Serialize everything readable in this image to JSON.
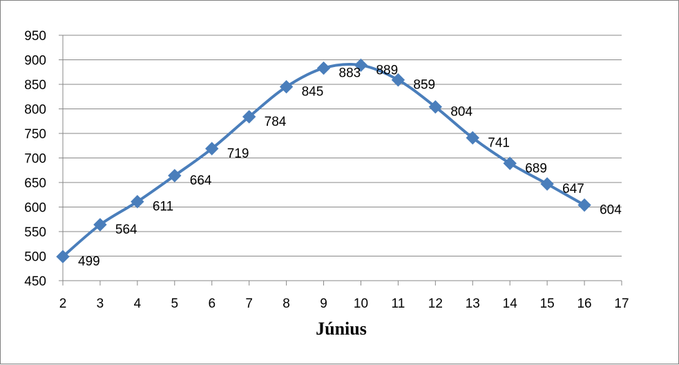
{
  "chart_data": {
    "type": "line",
    "title": "",
    "xlabel": "Június",
    "ylabel": "",
    "x": [
      2,
      3,
      4,
      5,
      6,
      7,
      8,
      9,
      10,
      11,
      12,
      13,
      14,
      15,
      16
    ],
    "series": [
      {
        "values": [
          499,
          564,
          611,
          664,
          719,
          784,
          845,
          883,
          889,
          859,
          804,
          741,
          689,
          647,
          604
        ]
      }
    ],
    "xlim": [
      2,
      17
    ],
    "ylim": [
      450,
      950
    ],
    "x_ticks": [
      2,
      3,
      4,
      5,
      6,
      7,
      8,
      9,
      10,
      11,
      12,
      13,
      14,
      15,
      16,
      17
    ],
    "y_ticks": [
      450,
      500,
      550,
      600,
      650,
      700,
      750,
      800,
      850,
      900,
      950
    ],
    "grid": "horizontal",
    "smoothed": true,
    "marker": "diamond",
    "line_color": "#4a7ebb",
    "data_labels": true,
    "legend": "none"
  }
}
